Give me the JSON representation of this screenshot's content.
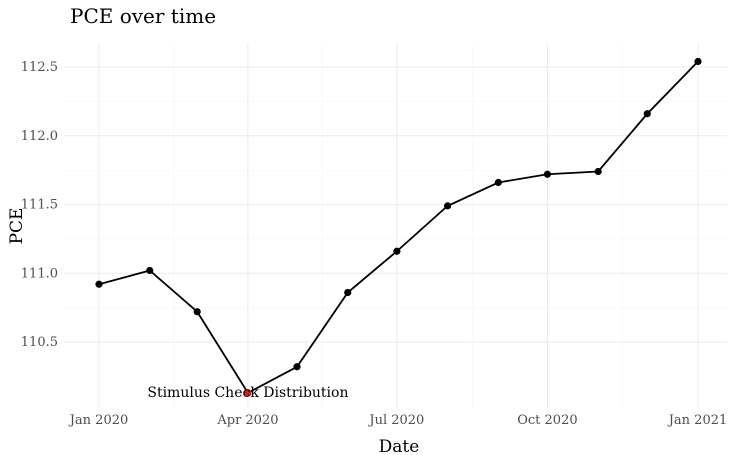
{
  "chart_data": {
    "type": "line",
    "title": "PCE over time",
    "xlabel": "Date",
    "ylabel": "PCE",
    "x": [
      "2020-01-01",
      "2020-02-01",
      "2020-03-01",
      "2020-04-01",
      "2020-05-01",
      "2020-06-01",
      "2020-07-01",
      "2020-08-01",
      "2020-09-01",
      "2020-10-01",
      "2020-11-01",
      "2020-12-01",
      "2021-01-01"
    ],
    "values": [
      110.92,
      111.02,
      110.72,
      110.13,
      110.32,
      110.86,
      111.16,
      111.49,
      111.66,
      111.72,
      111.74,
      112.16,
      112.54
    ],
    "xlim": [
      "2020-01-01",
      "2021-01-01"
    ],
    "ylim": [
      110.1,
      112.55
    ],
    "x_ticks": [
      {
        "date": "2020-01-01",
        "label": "Jan 2020"
      },
      {
        "date": "2020-04-01",
        "label": "Apr 2020"
      },
      {
        "date": "2020-07-01",
        "label": "Jul 2020"
      },
      {
        "date": "2020-10-01",
        "label": "Oct 2020"
      },
      {
        "date": "2021-01-01",
        "label": "Jan 2021"
      }
    ],
    "y_ticks": [
      110.5,
      111.0,
      111.5,
      112.0,
      112.5
    ],
    "y_tick_labels": [
      "110.5",
      "111.0",
      "111.5",
      "112.0",
      "112.5"
    ],
    "grid": true,
    "line_color": "#000000",
    "point_color": "#000000",
    "highlight": {
      "date": "2020-04-01",
      "value": 110.13,
      "label": "Stimulus Check Distribution",
      "color": "#d7191c"
    }
  }
}
